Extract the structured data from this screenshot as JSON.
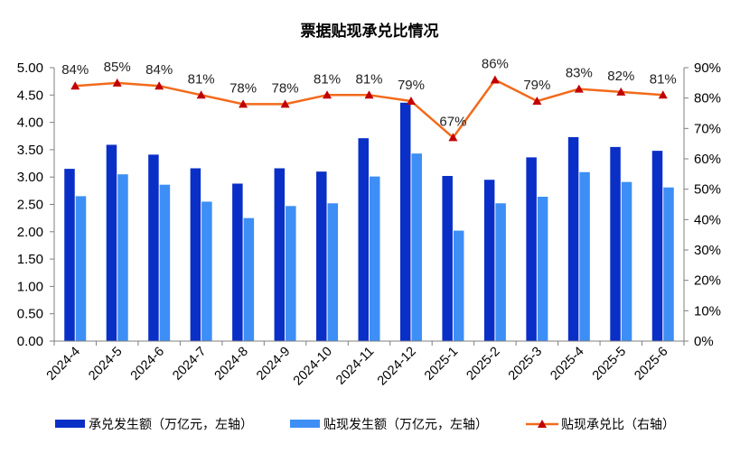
{
  "chart_data": {
    "type": "bar",
    "title": "票据贴现承兑比情况",
    "categories": [
      "2024-4",
      "2024-5",
      "2024-6",
      "2024-7",
      "2024-8",
      "2024-9",
      "2024-10",
      "2024-11",
      "2024-12",
      "2025-1",
      "2025-2",
      "2025-3",
      "2025-4",
      "2025-5",
      "2025-6"
    ],
    "series": [
      {
        "name": "承兑发生额（万亿元，左轴）",
        "type": "bar",
        "axis": "left",
        "color": "#0a2fc7",
        "values": [
          3.15,
          3.59,
          3.41,
          3.16,
          2.88,
          3.16,
          3.1,
          3.71,
          4.36,
          3.02,
          2.95,
          3.36,
          3.73,
          3.55,
          3.48
        ]
      },
      {
        "name": "贴现发生额（万亿元，左轴）",
        "type": "bar",
        "axis": "left",
        "color": "#3d8ef5",
        "values": [
          2.65,
          3.05,
          2.86,
          2.55,
          2.25,
          2.47,
          2.52,
          3.01,
          3.43,
          2.02,
          2.52,
          2.64,
          3.09,
          2.91,
          2.81
        ]
      },
      {
        "name": "贴现承兑比（右轴）",
        "type": "line",
        "axis": "right",
        "color": "#f26a1b",
        "marker": "triangle",
        "marker_color": "#c00000",
        "values": [
          84,
          85,
          84,
          81,
          78,
          78,
          81,
          81,
          79,
          67,
          86,
          79,
          83,
          82,
          81
        ],
        "labels": [
          "84%",
          "85%",
          "84%",
          "81%",
          "78%",
          "78%",
          "81%",
          "81%",
          "79%",
          "67%",
          "86%",
          "79%",
          "83%",
          "82%",
          "81%"
        ]
      }
    ],
    "ylim_left": [
      0,
      5
    ],
    "yticks_left": [
      "0.00",
      "0.50",
      "1.00",
      "1.50",
      "2.00",
      "2.50",
      "3.00",
      "3.50",
      "4.00",
      "4.50",
      "5.00"
    ],
    "ylim_right": [
      0,
      90
    ],
    "yticks_right": [
      "0%",
      "10%",
      "20%",
      "30%",
      "40%",
      "50%",
      "60%",
      "70%",
      "80%",
      "90%"
    ],
    "grid": false,
    "legend_position": "bottom"
  }
}
